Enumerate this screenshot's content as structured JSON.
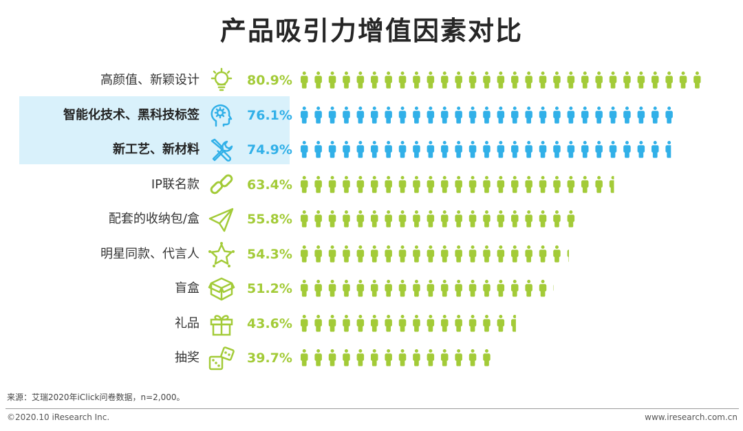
{
  "title": "产品吸引力增值因素对比",
  "colors": {
    "green": "#a3cb38",
    "blue": "#31b0e8",
    "highlight": "#d9f1fb"
  },
  "chart_data": {
    "type": "bar",
    "title": "产品吸引力增值因素对比",
    "categories": [
      "高颜值、新颖设计",
      "智能化技术、黑科技标签",
      "新工艺、新材料",
      "IP联名款",
      "配套的收纳包/盒",
      "明星同款、代言人",
      "盲盒",
      "礼品",
      "抽奖"
    ],
    "values": [
      80.9,
      76.1,
      74.9,
      63.4,
      55.8,
      54.3,
      51.2,
      43.6,
      39.7
    ],
    "value_labels": [
      "80.9%",
      "76.1%",
      "74.9%",
      "63.4%",
      "55.8%",
      "54.3%",
      "51.2%",
      "43.6%",
      "39.7%"
    ],
    "icons": [
      "lightbulb-icon",
      "head-gear-icon",
      "wrench-screwdriver-icon",
      "chain-link-icon",
      "paper-plane-icon",
      "star-icon",
      "box-icon",
      "gift-icon",
      "dice-icon"
    ],
    "highlighted": [
      false,
      true,
      true,
      false,
      false,
      false,
      false,
      false,
      false
    ],
    "unit": "%",
    "xlim": [
      0,
      100
    ]
  },
  "footer": {
    "source": "来源：艾瑞2020年iClick问卷数据，n=2,000。",
    "copyright": "©2020.10 iResearch Inc.",
    "website": "www.iresearch.com.cn"
  }
}
